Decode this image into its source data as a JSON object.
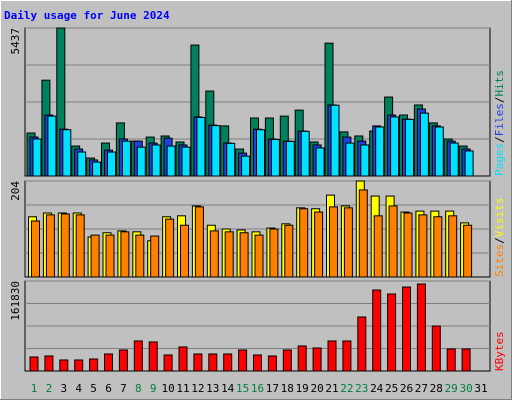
{
  "legend_separator": "/",
  "chart_data": [
    {
      "type": "bar",
      "title": "Daily usage for June 2024",
      "ylim": [
        0,
        5437
      ],
      "yticks": [
        5437
      ],
      "series": [
        {
          "name": "Hits",
          "color": "#00805c",
          "values": [
            1580,
            3520,
            5437,
            1100,
            660,
            1210,
            1950,
            1280,
            1430,
            1470,
            1250,
            4810,
            3120,
            1840,
            990,
            2130,
            2130,
            2200,
            2420,
            1250,
            4880,
            1620,
            1470,
            1650,
            2900,
            2240,
            2610,
            1950,
            1360,
            1100,
            null
          ]
        },
        {
          "name": "Files",
          "color": "#2040e0",
          "values": [
            1430,
            2240,
            1720,
            990,
            590,
            950,
            1360,
            1280,
            1210,
            1390,
            1140,
            2170,
            1870,
            1210,
            840,
            1720,
            1360,
            1280,
            1650,
            1140,
            2610,
            1430,
            1280,
            1840,
            2240,
            2090,
            2460,
            1840,
            1280,
            990,
            null
          ]
        },
        {
          "name": "Pages",
          "color": "#00e0ff",
          "values": [
            1360,
            2200,
            1700,
            880,
            510,
            880,
            1280,
            1060,
            1140,
            1100,
            1060,
            2150,
            1850,
            1200,
            730,
            1700,
            1340,
            1270,
            1640,
            1030,
            2600,
            1210,
            1140,
            1800,
            2170,
            2080,
            2310,
            1800,
            1210,
            920,
            null
          ]
        }
      ]
    },
    {
      "type": "bar",
      "ylim": [
        0,
        204
      ],
      "yticks": [
        204
      ],
      "series": [
        {
          "name": "Visits",
          "color": "#ffff00",
          "values": [
            128,
            136,
            136,
            136,
            85,
            94,
            98,
            96,
            77,
            128,
            130,
            151,
            110,
            102,
            100,
            96,
            104,
            113,
            147,
            145,
            174,
            151,
            204,
            172,
            172,
            138,
            140,
            140,
            140,
            115,
            null
          ]
        },
        {
          "name": "Sites",
          "color": "#ff8000",
          "values": [
            119,
            132,
            134,
            132,
            89,
            89,
            96,
            89,
            87,
            123,
            110,
            149,
            98,
            96,
            94,
            89,
            102,
            110,
            145,
            138,
            149,
            147,
            185,
            130,
            151,
            136,
            132,
            128,
            130,
            110,
            null
          ]
        }
      ]
    },
    {
      "type": "bar",
      "ylim": [
        0,
        161830
      ],
      "yticks": [
        161830
      ],
      "categories": [
        "1",
        "2",
        "3",
        "4",
        "5",
        "6",
        "7",
        "8",
        "9",
        "10",
        "11",
        "12",
        "13",
        "14",
        "15",
        "16",
        "17",
        "18",
        "19",
        "20",
        "21",
        "22",
        "23",
        "24",
        "25",
        "26",
        "27",
        "28",
        "29",
        "30",
        "31"
      ],
      "series": [
        {
          "name": "KBytes",
          "color": "#ff0000",
          "values": [
            25200,
            27000,
            19800,
            19800,
            21600,
            30600,
            37800,
            54000,
            52200,
            28800,
            43200,
            30600,
            30600,
            30600,
            37800,
            28800,
            27000,
            37800,
            45000,
            41400,
            54000,
            54000,
            97100,
            145600,
            138400,
            151000,
            156400,
            80900,
            39600,
            39600,
            null
          ]
        }
      ]
    }
  ]
}
